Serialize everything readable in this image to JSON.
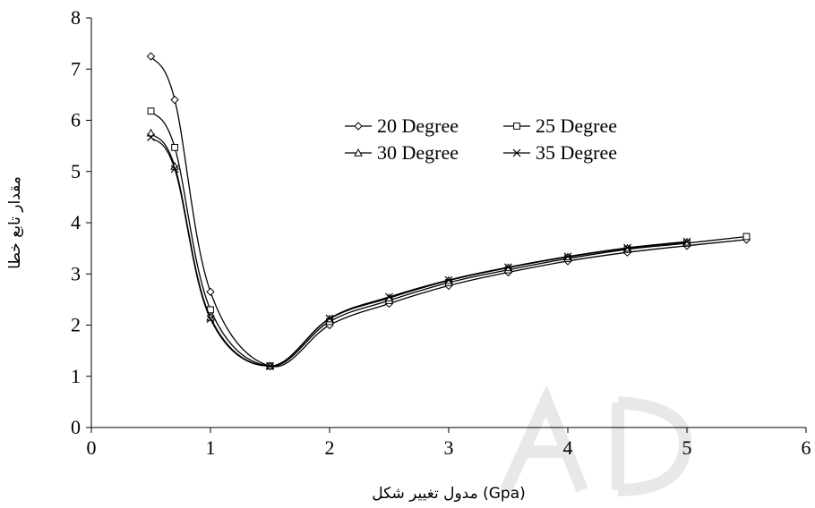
{
  "chart_data": {
    "type": "line",
    "title": "",
    "xlabel": "مدول تغییر شکل (Gpa)",
    "ylabel": "مقدار تابع خطا",
    "xlim": [
      0,
      6
    ],
    "ylim": [
      0,
      8
    ],
    "xticks": [
      "0",
      "1",
      "2",
      "3",
      "4",
      "5",
      "6"
    ],
    "yticks": [
      "0",
      "1",
      "2",
      "3",
      "4",
      "5",
      "6",
      "7",
      "8"
    ],
    "grid": false,
    "legend_position": "top-right",
    "series": [
      {
        "name": "20 Degree",
        "marker": "diamond",
        "x": [
          0.5,
          0.7,
          1.0,
          1.5,
          2.0,
          2.5,
          3.0,
          3.5,
          4.0,
          4.5,
          5.0,
          5.5
        ],
        "y": [
          7.25,
          6.4,
          2.65,
          1.2,
          2.0,
          2.42,
          2.77,
          3.03,
          3.25,
          3.42,
          3.55,
          3.67
        ]
      },
      {
        "name": "25 Degree",
        "marker": "square",
        "x": [
          0.5,
          0.7,
          1.0,
          1.5,
          2.0,
          2.5,
          3.0,
          3.5,
          4.0,
          4.5,
          5.0,
          5.5
        ],
        "y": [
          6.18,
          5.47,
          2.3,
          1.2,
          2.07,
          2.48,
          2.83,
          3.08,
          3.3,
          3.48,
          3.6,
          3.73
        ]
      },
      {
        "name": "30 Degree",
        "marker": "triangle",
        "x": [
          0.5,
          0.7,
          1.0,
          1.5,
          2.0,
          2.5,
          3.0,
          3.5,
          4.0,
          4.5,
          5.0
        ],
        "y": [
          5.75,
          5.1,
          2.15,
          1.2,
          2.12,
          2.53,
          2.87,
          3.12,
          3.33,
          3.5,
          3.62
        ]
      },
      {
        "name": "35 Degree",
        "marker": "x",
        "x": [
          0.5,
          0.7,
          1.0,
          1.5,
          2.0,
          2.5,
          3.0,
          3.5,
          4.0,
          4.5,
          5.0
        ],
        "y": [
          5.67,
          5.05,
          2.12,
          1.2,
          2.13,
          2.55,
          2.88,
          3.13,
          3.34,
          3.51,
          3.63
        ]
      }
    ]
  }
}
